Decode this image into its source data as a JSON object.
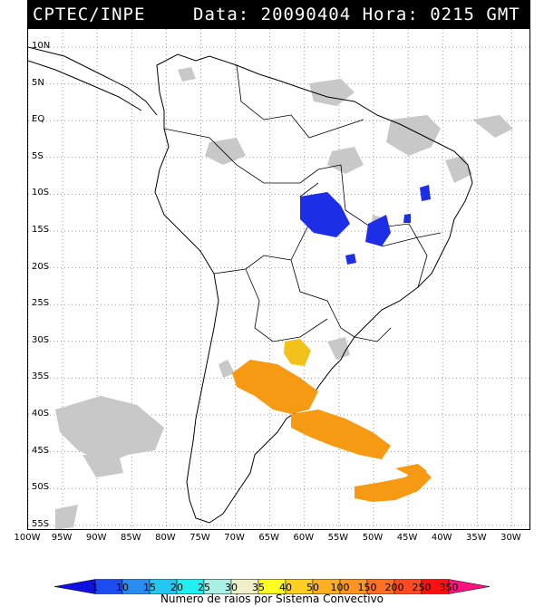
{
  "header": {
    "source": "CPTEC/INPE",
    "datetime": "Data: 20090404 Hora: 0215 GMT"
  },
  "map": {
    "lat_labels": [
      "10N",
      "5N",
      "EQ",
      "5S",
      "10S",
      "15S",
      "20S",
      "25S",
      "30S",
      "35S",
      "40S",
      "45S",
      "50S",
      "55S"
    ],
    "lon_labels": [
      "100W",
      "95W",
      "90W",
      "85W",
      "80W",
      "75W",
      "70W",
      "65W",
      "60W",
      "55W",
      "50W",
      "45W",
      "40W",
      "35W",
      "30W"
    ],
    "colors": {
      "land_border": "#000000",
      "grid": "#808080",
      "cloud_gray": "#bfbfbf",
      "blue_cells": "#1c2ee6",
      "orange_cells": "#f59a12",
      "yellow_cells": "#f2c21a"
    }
  },
  "colorbar": {
    "title": "Numero de raios por Sistema Convectivo",
    "ticks": [
      "1",
      "10",
      "15",
      "20",
      "25",
      "30",
      "35",
      "40",
      "50",
      "100",
      "150",
      "200",
      "250",
      "350"
    ],
    "colors": [
      "#1010e0",
      "#1a4cf0",
      "#2a8cf0",
      "#22c8f0",
      "#22f0f0",
      "#aaf0e6",
      "#f0f0c8",
      "#ffff22",
      "#ffd022",
      "#ffb022",
      "#ff9622",
      "#ff7022",
      "#ff4a22",
      "#ff1010",
      "#ff1080"
    ]
  }
}
